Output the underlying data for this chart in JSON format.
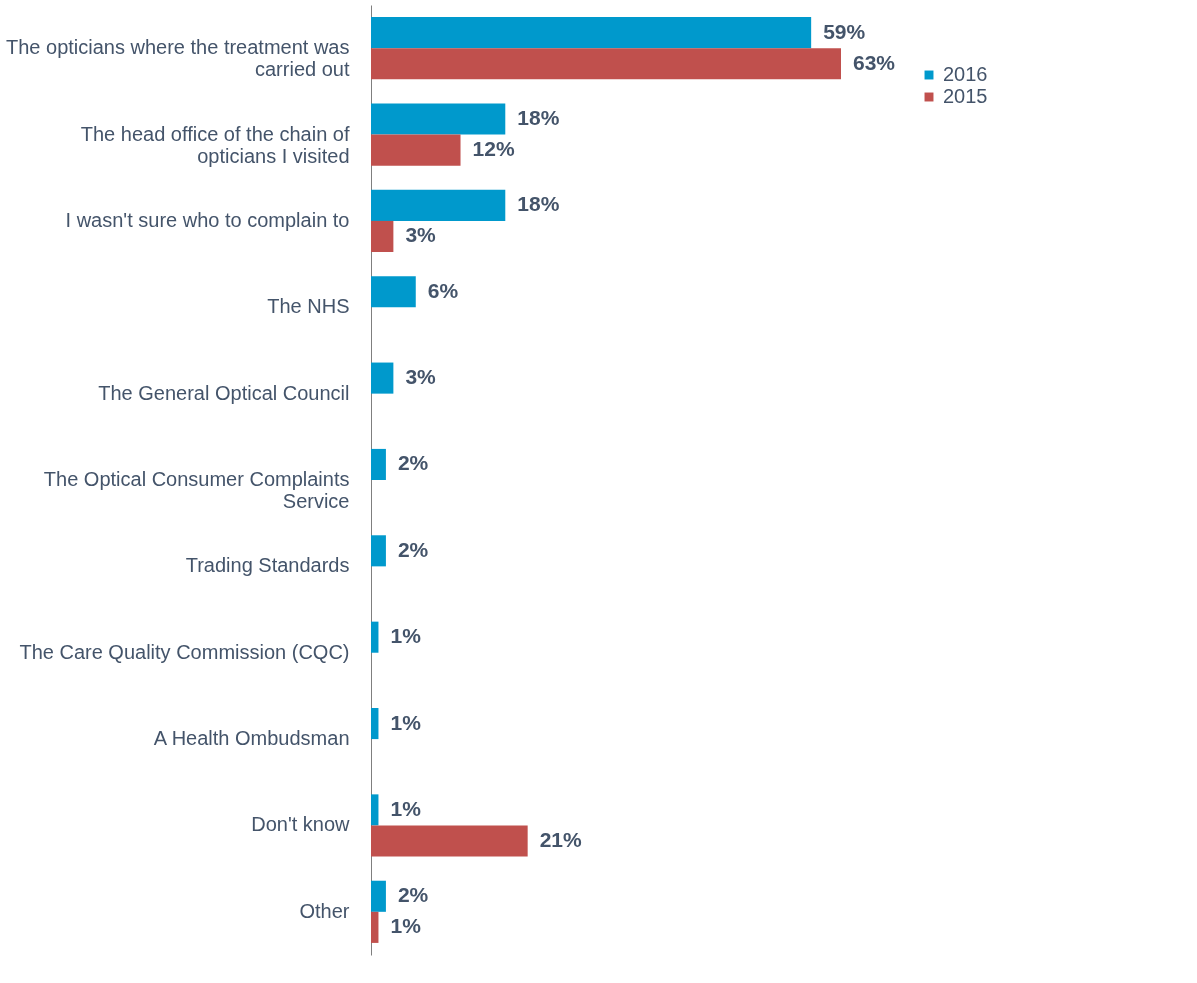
{
  "chart_data": {
    "type": "bar",
    "orientation": "horizontal",
    "categories": [
      "The opticians where the treatment was carried out",
      "The head office of the chain of opticians I visited",
      "I wasn't sure who to complain to",
      "The NHS",
      "The General Optical Council",
      "The Optical Consumer Complaints Service",
      "Trading Standards",
      "The Care Quality Commission (CQC)",
      "A Health Ombudsman",
      "Don't know",
      "Other"
    ],
    "series": [
      {
        "name": "2016",
        "color": "#0099cc",
        "values": [
          59,
          18,
          18,
          6,
          3,
          2,
          2,
          1,
          1,
          1,
          2
        ],
        "value_labels": [
          "59%",
          "18%",
          "18%",
          "6%",
          "3%",
          "2%",
          "2%",
          "1%",
          "1%",
          "1%",
          "2%"
        ]
      },
      {
        "name": "2015",
        "color": "#c0504d",
        "values": [
          63,
          12,
          3,
          null,
          null,
          null,
          null,
          null,
          null,
          21,
          1
        ],
        "value_labels": [
          "63%",
          "12%",
          "3%",
          null,
          null,
          null,
          null,
          null,
          null,
          "21%",
          "1%"
        ]
      }
    ],
    "legend": "right",
    "tick_labels": "y",
    "grid": false
  }
}
